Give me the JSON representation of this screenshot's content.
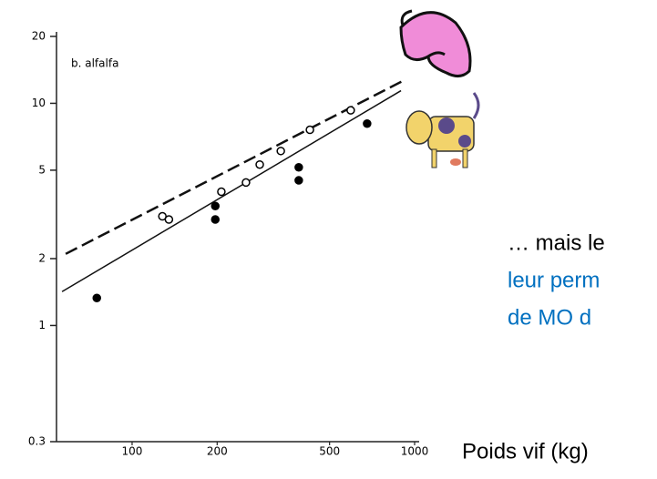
{
  "chart_data": {
    "type": "scatter",
    "annotation": "b. alfalfa",
    "x_label": "Poids vif (kg)",
    "xlim": [
      54,
      1000
    ],
    "xticks": [
      100,
      200,
      500,
      1000
    ],
    "x_log": true,
    "ylim": [
      0.3,
      20
    ],
    "yticks": [
      0.3,
      1,
      2,
      5,
      10,
      20
    ],
    "y_log": true,
    "series": [
      {
        "marker": "open",
        "color": "#000000",
        "x": [
          128,
          135,
          207,
          253,
          283,
          336,
          426,
          594
        ],
        "values": [
          3.1,
          3.0,
          4.0,
          4.4,
          5.3,
          6.1,
          7.6,
          9.3
        ]
      },
      {
        "marker": "filled",
        "color": "#000000",
        "x": [
          75,
          197,
          197,
          389,
          389,
          679
        ],
        "values": [
          1.33,
          3.45,
          3.0,
          5.15,
          4.5,
          8.1
        ]
      }
    ],
    "lines": [
      {
        "dashed": true,
        "x": [
          58.2,
          929
        ],
        "values": [
          2.1,
          12.8
        ]
      },
      {
        "dashed": false,
        "x": [
          56.5,
          895
        ],
        "values": [
          1.42,
          11.4
        ]
      }
    ]
  },
  "slide_text": {
    "lines": [
      "… mais le",
      "leur perm",
      "de MO d"
    ],
    "colors": [
      "#000000",
      "#0070c0",
      "#0070c0"
    ]
  }
}
